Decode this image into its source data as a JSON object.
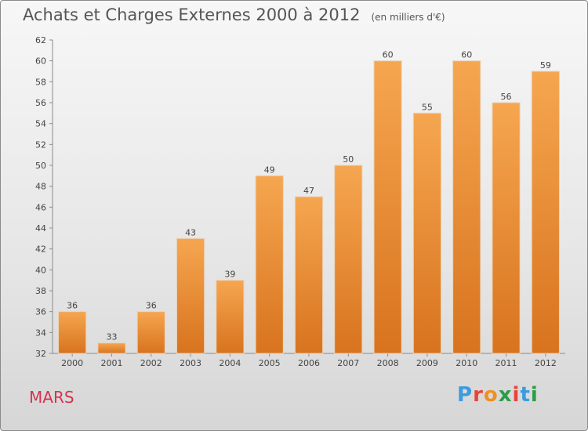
{
  "title": "Achats et Charges Externes 2000 à 2012",
  "unit": "(en milliers d'€)",
  "commune": "MARS",
  "brand": {
    "text": "Proxiti",
    "colors": [
      "#3a9be0",
      "#e8443a",
      "#f09020",
      "#2a9d48",
      "#e8443a",
      "#3a9be0",
      "#2a9d48"
    ]
  },
  "chart_data": {
    "type": "bar",
    "title": "Achats et Charges Externes 2000 à 2012",
    "subtitle": "(en milliers d'€)",
    "categories": [
      "2000",
      "2001",
      "2002",
      "2003",
      "2004",
      "2005",
      "2006",
      "2007",
      "2008",
      "2009",
      "2010",
      "2011",
      "2012"
    ],
    "values": [
      36,
      33,
      36,
      43,
      39,
      49,
      47,
      50,
      60,
      55,
      60,
      56,
      59
    ],
    "ylim": [
      32,
      62
    ],
    "yticks": [
      32,
      34,
      36,
      38,
      40,
      42,
      44,
      46,
      48,
      50,
      52,
      54,
      56,
      58,
      60,
      62
    ],
    "grid": false,
    "bar_color": "#f09a40",
    "data_labels": true
  }
}
